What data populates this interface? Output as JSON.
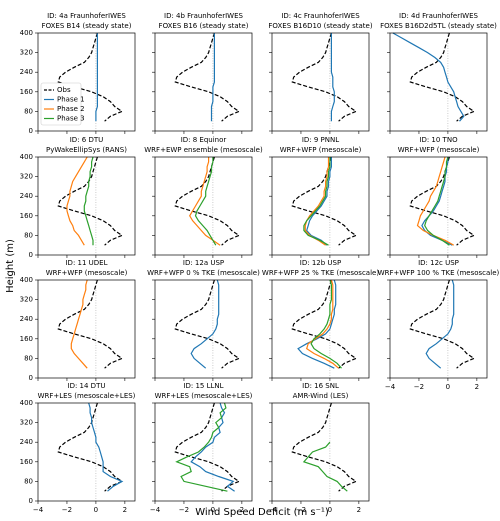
{
  "ylabel": "Height (m)",
  "xlabel": "Wind Speed Deficit (m s⁻¹)",
  "axes": {
    "xlim": [
      -4,
      2.7
    ],
    "ylim": [
      0,
      400
    ],
    "xticks": [
      {
        "value": -4,
        "label": "−4"
      },
      {
        "value": -2,
        "label": "−2"
      },
      0,
      2
    ],
    "yticks": [
      0,
      80,
      160,
      240,
      320,
      400
    ]
  },
  "legend": [
    {
      "name": "Obs",
      "color": "#000000",
      "dash": true
    },
    {
      "name": "Phase 1",
      "color": "#1f77b4",
      "dash": false
    },
    {
      "name": "Phase 2",
      "color": "#ff7f0e",
      "dash": false
    },
    {
      "name": "Phase 3",
      "color": "#2ca02c",
      "dash": false
    }
  ],
  "heights": [
    400,
    380,
    360,
    340,
    320,
    300,
    280,
    260,
    240,
    220,
    200,
    180,
    160,
    140,
    120,
    100,
    80,
    60,
    40
  ],
  "chart_data": [
    {
      "type": "line",
      "title": [
        "ID: 4a FraunhoferIWES",
        "FOXES B14 (steady state)"
      ],
      "series": [
        [
          0.1,
          0.0,
          -0.1,
          -0.2,
          -0.3,
          -0.5,
          -0.8,
          -1.5,
          -2.1,
          -2.5,
          -2.6,
          -1.5,
          -0.3,
          0.5,
          1.0,
          1.3,
          1.8,
          1.0,
          0.6
        ],
        [
          0.1,
          0.1,
          0.1,
          0.1,
          0.1,
          0.1,
          0.1,
          0.1,
          0.1,
          0.1,
          0.1,
          0.1,
          0.1,
          0.1,
          0.1,
          0.1,
          0.0,
          0.0,
          0.0
        ],
        null,
        null
      ]
    },
    {
      "type": "line",
      "title": [
        "ID: 4b FraunhoferIWES",
        "FOXES B16 (steady state)"
      ],
      "series": [
        [
          0.1,
          0.0,
          -0.1,
          -0.2,
          -0.3,
          -0.5,
          -0.8,
          -1.5,
          -2.1,
          -2.5,
          -2.6,
          -1.5,
          -0.3,
          0.5,
          1.0,
          1.3,
          1.8,
          1.0,
          0.6
        ],
        [
          0.1,
          0.1,
          0.1,
          0.1,
          0.1,
          0.1,
          0.1,
          0.1,
          0.1,
          0.1,
          0.1,
          0.0,
          0.0,
          0.0,
          0.0,
          -0.1,
          -0.1,
          -0.1,
          -0.1
        ],
        null,
        null
      ]
    },
    {
      "type": "line",
      "title": [
        "ID: 4c FraunhoferIWES",
        "FOXES B16D10 (steady state)"
      ],
      "series": [
        [
          0.1,
          0.0,
          -0.1,
          -0.2,
          -0.3,
          -0.5,
          -0.8,
          -1.5,
          -2.1,
          -2.5,
          -2.6,
          -1.5,
          -0.3,
          0.5,
          1.0,
          1.3,
          1.8,
          1.0,
          0.6
        ],
        [
          0.1,
          0.1,
          0.1,
          0.1,
          0.1,
          0.1,
          0.1,
          0.1,
          0.1,
          0.2,
          0.2,
          0.2,
          0.3,
          0.3,
          0.3,
          0.2,
          0.1,
          0.1,
          0.1
        ],
        null,
        null
      ]
    },
    {
      "type": "line",
      "title": [
        "ID: 4d FraunhoferIWES",
        "FOXES B16D2d5TL (steady state)"
      ],
      "series": [
        [
          0.1,
          0.0,
          -0.1,
          -0.2,
          -0.3,
          -0.5,
          -0.8,
          -1.5,
          -2.1,
          -2.5,
          -2.6,
          -1.5,
          -0.3,
          0.5,
          1.0,
          1.3,
          1.8,
          1.0,
          0.6
        ],
        [
          -3.8,
          -3.2,
          -2.6,
          -2.0,
          -1.4,
          -0.9,
          -0.5,
          -0.3,
          -0.2,
          -0.1,
          0.0,
          0.2,
          0.4,
          0.5,
          0.6,
          0.7,
          0.9,
          1.1,
          0.8
        ],
        null,
        null
      ]
    },
    {
      "type": "line",
      "title": [
        "ID: 6 DTU",
        "PyWakeEllipSys (RANS)"
      ],
      "series": [
        [
          0.1,
          0.0,
          -0.1,
          -0.2,
          -0.3,
          -0.5,
          -0.8,
          -1.5,
          -2.1,
          -2.5,
          -2.6,
          -1.5,
          -0.3,
          0.5,
          1.0,
          1.3,
          1.8,
          1.0,
          0.6
        ],
        null,
        [
          -0.6,
          -0.8,
          -1.0,
          -1.2,
          -1.4,
          -1.6,
          -1.7,
          -1.8,
          -1.8,
          -1.9,
          -2.0,
          -2.0,
          -1.9,
          -1.8,
          -1.6,
          -1.5,
          -1.2,
          -1.0,
          -0.8
        ],
        [
          -0.2,
          -0.3,
          -0.3,
          -0.4,
          -0.4,
          -0.5,
          -0.5,
          -0.6,
          -0.7,
          -0.7,
          -0.8,
          -0.8,
          -0.7,
          -0.6,
          -0.5,
          -0.4,
          -0.3,
          -0.2,
          -0.2
        ]
      ]
    },
    {
      "type": "line",
      "title": [
        "ID: 8 Equinor",
        "WRF+EWP ensemble (mesoscale)"
      ],
      "series": [
        [
          0.1,
          0.0,
          -0.1,
          -0.2,
          -0.3,
          -0.5,
          -0.8,
          -1.5,
          -2.1,
          -2.5,
          -2.6,
          -1.5,
          -0.3,
          0.5,
          1.0,
          1.3,
          1.8,
          1.0,
          0.6
        ],
        null,
        [
          -0.3,
          -0.3,
          -0.4,
          -0.4,
          -0.5,
          -0.6,
          -0.7,
          -0.8,
          -0.8,
          -1.0,
          -1.2,
          -1.4,
          -1.6,
          -1.4,
          -1.1,
          -0.8,
          -0.5,
          0.0,
          0.5
        ],
        [
          0.0,
          0.0,
          -0.1,
          -0.1,
          -0.2,
          -0.3,
          -0.4,
          -0.5,
          -0.5,
          -0.7,
          -0.9,
          -1.1,
          -1.2,
          -1.0,
          -0.7,
          -0.4,
          -0.2,
          0.0,
          0.2
        ]
      ]
    },
    {
      "type": "line",
      "title": [
        "ID: 9 PNNL",
        "WRF+WFP (mesoscale)"
      ],
      "series": [
        [
          0.1,
          0.0,
          -0.1,
          -0.2,
          -0.3,
          -0.5,
          -0.8,
          -1.5,
          -2.1,
          -2.5,
          -2.6,
          -1.5,
          -0.3,
          0.5,
          1.0,
          1.3,
          1.8,
          1.0,
          0.6
        ],
        [
          0.1,
          0.1,
          0.1,
          0.0,
          0.0,
          -0.1,
          -0.1,
          -0.2,
          -0.2,
          -0.4,
          -0.6,
          -0.9,
          -1.2,
          -1.4,
          -1.5,
          -1.6,
          -1.3,
          -0.6,
          -0.2
        ],
        [
          -0.1,
          -0.1,
          -0.1,
          -0.2,
          -0.2,
          -0.3,
          -0.3,
          -0.4,
          -0.4,
          -0.6,
          -0.8,
          -1.1,
          -1.4,
          -1.6,
          -1.7,
          -1.7,
          -1.4,
          -0.8,
          -0.3
        ],
        [
          0.0,
          0.0,
          0.0,
          -0.1,
          -0.1,
          -0.2,
          -0.2,
          -0.3,
          -0.3,
          -0.5,
          -0.7,
          -1.0,
          -1.3,
          -1.6,
          -1.8,
          -1.8,
          -1.5,
          -0.7,
          -0.1
        ]
      ]
    },
    {
      "type": "line",
      "title": [
        "ID: 10 TNO",
        "WRF+WFP (mesoscale)"
      ],
      "series": [
        [
          0.1,
          0.0,
          -0.1,
          -0.2,
          -0.3,
          -0.5,
          -0.8,
          -1.5,
          -2.1,
          -2.5,
          -2.6,
          -1.5,
          -0.3,
          0.5,
          1.0,
          1.3,
          1.8,
          1.0,
          0.6
        ],
        [
          0.0,
          0.0,
          -0.1,
          -0.1,
          -0.2,
          -0.2,
          -0.3,
          -0.4,
          -0.5,
          -0.6,
          -0.8,
          -1.0,
          -1.3,
          -1.6,
          -1.8,
          -1.6,
          -1.2,
          -0.4,
          0.3
        ],
        [
          -0.2,
          -0.3,
          -0.4,
          -0.5,
          -0.6,
          -0.7,
          -0.8,
          -1.0,
          -1.2,
          -1.3,
          -1.5,
          -1.7,
          -1.9,
          -2.0,
          -2.1,
          -1.7,
          -1.0,
          -0.2,
          0.4
        ],
        [
          0.0,
          -0.1,
          -0.1,
          -0.2,
          -0.2,
          -0.3,
          -0.4,
          -0.5,
          -0.6,
          -0.7,
          -0.9,
          -1.1,
          -1.3,
          -1.5,
          -1.6,
          -1.4,
          -1.0,
          -0.4,
          0.1
        ]
      ]
    },
    {
      "type": "line",
      "title": [
        "ID: 11 UDEL",
        "WRF+WFP (mesoscale)"
      ],
      "series": [
        [
          0.1,
          0.0,
          -0.1,
          -0.2,
          -0.3,
          -0.5,
          -0.8,
          -1.5,
          -2.1,
          -2.5,
          -2.6,
          -1.5,
          -0.3,
          0.5,
          1.0,
          1.3,
          1.8,
          1.0,
          0.6
        ],
        null,
        [
          -0.6,
          -0.7,
          -0.7,
          -0.8,
          -0.9,
          -0.9,
          -1.0,
          -1.1,
          -1.2,
          -1.3,
          -1.4,
          -1.5,
          -1.6,
          -1.7,
          -1.7,
          -1.5,
          -1.2,
          -0.9,
          -0.6
        ],
        null
      ]
    },
    {
      "type": "line",
      "title": [
        "ID: 12a USP",
        "WRF+WFP 0 % TKE (mesoscale)"
      ],
      "series": [
        [
          0.1,
          0.0,
          -0.1,
          -0.2,
          -0.3,
          -0.5,
          -0.8,
          -1.5,
          -2.1,
          -2.5,
          -2.6,
          -1.5,
          -0.3,
          0.5,
          1.0,
          1.3,
          1.8,
          1.0,
          0.6
        ],
        [
          0.3,
          0.4,
          0.4,
          0.4,
          0.4,
          0.4,
          0.4,
          0.4,
          0.3,
          0.3,
          0.2,
          0.0,
          -0.4,
          -0.8,
          -1.3,
          -1.5,
          -1.3,
          -0.9,
          -0.5
        ],
        null,
        null
      ]
    },
    {
      "type": "line",
      "title": [
        "ID: 12b USP",
        "WRF+WFP 25 % TKE (mesoscale)"
      ],
      "series": [
        [
          0.1,
          0.0,
          -0.1,
          -0.2,
          -0.3,
          -0.5,
          -0.8,
          -1.5,
          -2.1,
          -2.5,
          -2.6,
          -1.5,
          -0.3,
          0.5,
          1.0,
          1.3,
          1.8,
          1.0,
          0.6
        ],
        [
          0.3,
          0.4,
          0.4,
          0.4,
          0.4,
          0.4,
          0.3,
          0.3,
          0.2,
          0.1,
          0.0,
          -0.3,
          -0.9,
          -1.6,
          -2.2,
          -1.9,
          -1.2,
          -0.4,
          0.3
        ],
        [
          0.1,
          0.2,
          0.2,
          0.2,
          0.2,
          0.2,
          0.2,
          0.1,
          0.1,
          0.0,
          -0.2,
          -0.5,
          -1.0,
          -1.5,
          -1.6,
          -1.1,
          -0.4,
          0.2,
          0.6
        ],
        [
          0.0,
          0.1,
          0.1,
          0.1,
          0.1,
          0.0,
          0.0,
          0.0,
          -0.1,
          -0.2,
          -0.4,
          -0.7,
          -1.1,
          -1.3,
          -1.1,
          -0.6,
          0.0,
          0.5,
          0.8
        ]
      ]
    },
    {
      "type": "line",
      "title": [
        "ID: 12c USP",
        "WRF+WFP 100 % TKE (mesoscale)"
      ],
      "series": [
        [
          0.1,
          0.0,
          -0.1,
          -0.2,
          -0.3,
          -0.5,
          -0.8,
          -1.5,
          -2.1,
          -2.5,
          -2.6,
          -1.5,
          -0.3,
          0.5,
          1.0,
          1.3,
          1.8,
          1.0,
          0.6
        ],
        [
          0.3,
          0.4,
          0.4,
          0.4,
          0.4,
          0.4,
          0.4,
          0.4,
          0.3,
          0.3,
          0.2,
          0.0,
          -0.4,
          -0.8,
          -1.3,
          -1.5,
          -1.3,
          -0.9,
          -0.5
        ],
        null,
        null
      ]
    },
    {
      "type": "line",
      "title": [
        "ID: 14 DTU",
        "WRF+LES (mesoscale+LES)"
      ],
      "series": [
        [
          0.1,
          0.0,
          -0.1,
          -0.2,
          -0.3,
          -0.5,
          -0.8,
          -1.5,
          -2.1,
          -2.5,
          -2.6,
          -1.5,
          -0.3,
          0.5,
          1.0,
          1.3,
          1.8,
          1.0,
          0.6
        ],
        [
          -0.5,
          -0.4,
          -0.4,
          -0.3,
          -0.3,
          -0.2,
          -0.1,
          0.0,
          0.0,
          0.2,
          0.3,
          0.4,
          0.5,
          0.5,
          0.5,
          1.0,
          1.8,
          1.2,
          0.8
        ],
        null,
        null
      ]
    },
    {
      "type": "line",
      "title": [
        "ID: 15 LLNL",
        "WRF+LES (mesoscale+LES)"
      ],
      "series": [
        [
          0.1,
          0.0,
          -0.1,
          -0.2,
          -0.3,
          -0.5,
          -0.8,
          -1.5,
          -2.1,
          -2.5,
          -2.6,
          -1.5,
          -0.3,
          0.5,
          1.0,
          1.3,
          1.8,
          1.0,
          0.6
        ],
        [
          0.5,
          0.6,
          0.8,
          0.6,
          0.7,
          0.4,
          0.5,
          0.1,
          0.0,
          -0.5,
          -0.8,
          -1.2,
          -1.5,
          -0.9,
          -0.5,
          0.4,
          1.4,
          1.0,
          1.5
        ],
        null,
        [
          0.8,
          0.9,
          0.5,
          0.6,
          0.2,
          0.4,
          0.0,
          -0.1,
          -0.3,
          -0.6,
          -1.0,
          -1.8,
          -2.5,
          -1.6,
          -1.5,
          -2.2,
          -2.0,
          -0.5,
          1.0
        ]
      ]
    },
    {
      "type": "line",
      "title": [
        "ID: 16 SNL",
        "AMR-Wind (LES)"
      ],
      "series": [
        [
          0.1,
          0.0,
          -0.1,
          -0.2,
          -0.3,
          -0.5,
          -0.8,
          -1.5,
          -2.1,
          -2.5,
          -2.6,
          -1.5,
          -0.3,
          0.5,
          1.0,
          1.3,
          1.8,
          1.0,
          0.6
        ],
        null,
        null,
        [
          null,
          null,
          null,
          null,
          null,
          null,
          null,
          null,
          0.0,
          -0.3,
          -1.2,
          -1.5,
          -1.8,
          -0.8,
          -0.5,
          -0.2,
          0.5,
          0.8,
          1.2
        ]
      ]
    }
  ]
}
